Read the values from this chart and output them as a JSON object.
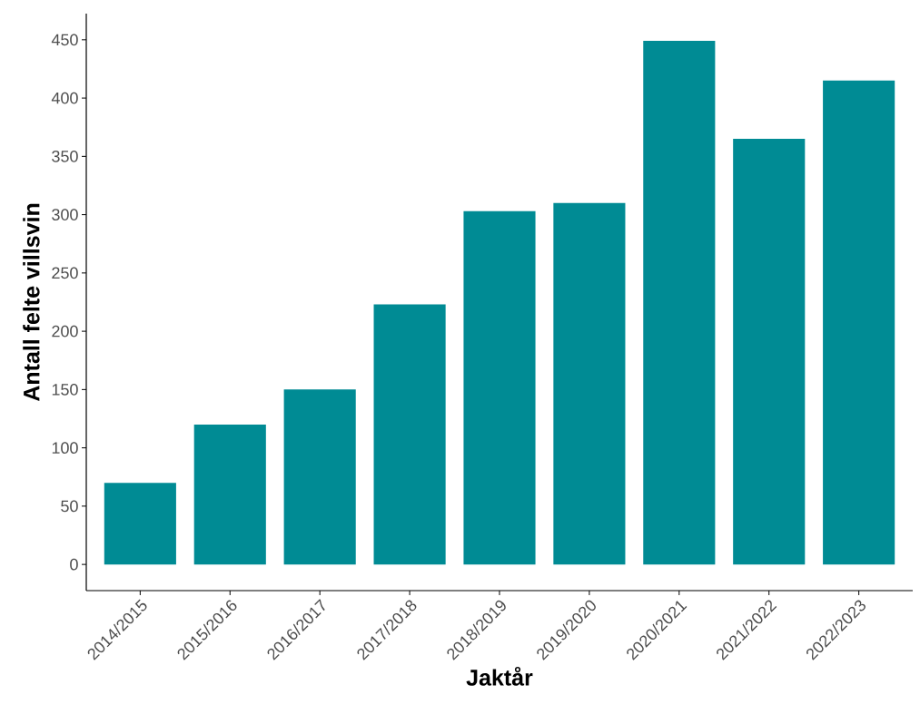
{
  "chart_data": {
    "type": "bar",
    "xlabel": "Jaktår",
    "ylabel": "Antall felte villsvin",
    "categories": [
      "2014/2015",
      "2015/2016",
      "2016/2017",
      "2017/2018",
      "2018/2019",
      "2019/2020",
      "2020/2021",
      "2021/2022",
      "2022/2023"
    ],
    "values": [
      70,
      120,
      150,
      223,
      303,
      310,
      449,
      365,
      415
    ],
    "color": "#008b94",
    "ylim": [
      -22.45,
      472.45
    ],
    "yticks": [
      0,
      50,
      100,
      150,
      200,
      250,
      300,
      350,
      400,
      450
    ]
  }
}
